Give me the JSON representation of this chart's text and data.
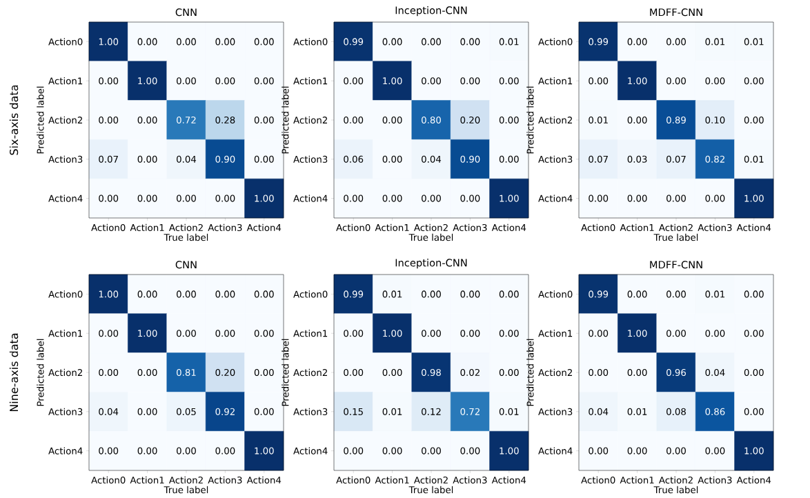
{
  "chart_data": [
    {
      "type": "heatmap",
      "title": "CNN",
      "xlabel": "True label",
      "ylabel": "Predicted label",
      "annotations": [
        "Six-axis data"
      ],
      "categories": [
        "Action0",
        "Action1",
        "Action2",
        "Action3",
        "Action4"
      ],
      "y_categories": [
        "Action0",
        "Action1",
        "Action2",
        "Action3",
        "Action4"
      ],
      "cells": [
        [
          1.0,
          0.0,
          0.0,
          0.0,
          0.0
        ],
        [
          0.0,
          1.0,
          0.0,
          0.0,
          0.0
        ],
        [
          0.0,
          0.0,
          0.72,
          0.28,
          0.0
        ],
        [
          0.07,
          0.0,
          0.04,
          0.9,
          0.0
        ],
        [
          0.0,
          0.0,
          0.0,
          0.0,
          1.0
        ]
      ],
      "cell_labels": [
        [
          "1.00",
          "0.00",
          "0.00",
          "0.00",
          "0.00"
        ],
        [
          "0.00",
          "1.00",
          "0.00",
          "0.00",
          "0.00"
        ],
        [
          "0.00",
          "0.00",
          "0.72",
          "0.28",
          "0.00"
        ],
        [
          "0.07",
          "0.00",
          "0.04",
          "0.90",
          "0.00"
        ],
        [
          "0.00",
          "0.00",
          "0.00",
          "0.00",
          "1.00"
        ]
      ]
    },
    {
      "type": "heatmap",
      "title": "Inception-CNN",
      "xlabel": "True label",
      "ylabel": "Predicted label",
      "categories": [
        "Action0",
        "Action1",
        "Action2",
        "Action3",
        "Action4"
      ],
      "y_categories": [
        "Action0",
        "Action1",
        "Action2",
        "Action3",
        "Action4"
      ],
      "cells": [
        [
          0.99,
          0.0,
          0.0,
          0.0,
          0.01
        ],
        [
          0.0,
          1.0,
          0.0,
          0.0,
          0.0
        ],
        [
          0.0,
          0.0,
          0.8,
          0.2,
          0.0
        ],
        [
          0.06,
          0.0,
          0.04,
          0.9,
          0.0
        ],
        [
          0.0,
          0.0,
          0.0,
          0.0,
          1.0
        ]
      ],
      "cell_labels": [
        [
          "0.99",
          "0.00",
          "0.00",
          "0.00",
          "0.01"
        ],
        [
          "0.00",
          "1.00",
          "0.00",
          "0.00",
          "0.00"
        ],
        [
          "0.00",
          "0.00",
          "0.80",
          "0.20",
          "0.00"
        ],
        [
          "0.06",
          "0.00",
          "0.04",
          "0.90",
          "0.00"
        ],
        [
          "0.00",
          "0.00",
          "0.00",
          "0.00",
          "1.00"
        ]
      ]
    },
    {
      "type": "heatmap",
      "title": "MDFF-CNN",
      "xlabel": "True label",
      "ylabel": "Predicted label",
      "categories": [
        "Action0",
        "Action1",
        "Action2",
        "Action3",
        "Action4"
      ],
      "y_categories": [
        "Action0",
        "Action1",
        "Action2",
        "Action3",
        "Action4"
      ],
      "cells": [
        [
          0.99,
          0.0,
          0.0,
          0.01,
          0.01
        ],
        [
          0.0,
          1.0,
          0.0,
          0.0,
          0.0
        ],
        [
          0.01,
          0.0,
          0.89,
          0.1,
          0.0
        ],
        [
          0.07,
          0.03,
          0.07,
          0.82,
          0.01
        ],
        [
          0.0,
          0.0,
          0.0,
          0.0,
          1.0
        ]
      ],
      "cell_labels": [
        [
          "0.99",
          "0.00",
          "0.00",
          "0.01",
          "0.01"
        ],
        [
          "0.00",
          "1.00",
          "0.00",
          "0.00",
          "0.00"
        ],
        [
          "0.01",
          "0.00",
          "0.89",
          "0.10",
          "0.00"
        ],
        [
          "0.07",
          "0.03",
          "0.07",
          "0.82",
          "0.01"
        ],
        [
          "0.00",
          "0.00",
          "0.00",
          "0.00",
          "1.00"
        ]
      ]
    },
    {
      "type": "heatmap",
      "title": "CNN",
      "xlabel": "True label",
      "ylabel": "Predicted label",
      "annotations": [
        "Nine-axis data"
      ],
      "categories": [
        "Action0",
        "Action1",
        "Action2",
        "Action3",
        "Action4"
      ],
      "y_categories": [
        "Action0",
        "Action1",
        "Action2",
        "Action3",
        "Action4"
      ],
      "cells": [
        [
          1.0,
          0.0,
          0.0,
          0.0,
          0.0
        ],
        [
          0.0,
          1.0,
          0.0,
          0.0,
          0.0
        ],
        [
          0.0,
          0.0,
          0.81,
          0.2,
          0.0
        ],
        [
          0.04,
          0.0,
          0.05,
          0.92,
          0.0
        ],
        [
          0.0,
          0.0,
          0.0,
          0.0,
          1.0
        ]
      ],
      "cell_labels": [
        [
          "1.00",
          "0.00",
          "0.00",
          "0.00",
          "0.00"
        ],
        [
          "0.00",
          "1.00",
          "0.00",
          "0.00",
          "0.00"
        ],
        [
          "0.00",
          "0.00",
          "0.81",
          "0.20",
          "0.00"
        ],
        [
          "0.04",
          "0.00",
          "0.05",
          "0.92",
          "0.00"
        ],
        [
          "0.00",
          "0.00",
          "0.00",
          "0.00",
          "1.00"
        ]
      ]
    },
    {
      "type": "heatmap",
      "title": "Inception-CNN",
      "xlabel": "True label",
      "ylabel": "Predicted label",
      "categories": [
        "Action0",
        "Action1",
        "Action2",
        "Action3",
        "Action4"
      ],
      "y_categories": [
        "Action0",
        "Action1",
        "Action2",
        "Action3",
        "Action4"
      ],
      "cells": [
        [
          0.99,
          0.01,
          0.0,
          0.0,
          0.0
        ],
        [
          0.0,
          1.0,
          0.0,
          0.0,
          0.0
        ],
        [
          0.0,
          0.0,
          0.98,
          0.02,
          0.0
        ],
        [
          0.15,
          0.01,
          0.12,
          0.72,
          0.01
        ],
        [
          0.0,
          0.0,
          0.0,
          0.0,
          1.0
        ]
      ],
      "cell_labels": [
        [
          "0.99",
          "0.01",
          "0.00",
          "0.00",
          "0.00"
        ],
        [
          "0.00",
          "1.00",
          "0.00",
          "0.00",
          "0.00"
        ],
        [
          "0.00",
          "0.00",
          "0.98",
          "0.02",
          "0.00"
        ],
        [
          "0.15",
          "0.01",
          "0.12",
          "0.72",
          "0.01"
        ],
        [
          "0.00",
          "0.00",
          "0.00",
          "0.00",
          "1.00"
        ]
      ]
    },
    {
      "type": "heatmap",
      "title": "MDFF-CNN",
      "xlabel": "True label",
      "ylabel": "Predicted label",
      "categories": [
        "Action0",
        "Action1",
        "Action2",
        "Action3",
        "Action4"
      ],
      "y_categories": [
        "Action0",
        "Action1",
        "Action2",
        "Action3",
        "Action4"
      ],
      "cells": [
        [
          0.99,
          0.0,
          0.0,
          0.01,
          0.0
        ],
        [
          0.0,
          1.0,
          0.0,
          0.0,
          0.0
        ],
        [
          0.0,
          0.0,
          0.96,
          0.04,
          0.0
        ],
        [
          0.04,
          0.01,
          0.08,
          0.86,
          0.0
        ],
        [
          0.0,
          0.0,
          0.0,
          0.0,
          1.0
        ]
      ],
      "cell_labels": [
        [
          "0.99",
          "0.00",
          "0.00",
          "0.01",
          "0.00"
        ],
        [
          "0.00",
          "1.00",
          "0.00",
          "0.00",
          "0.00"
        ],
        [
          "0.00",
          "0.00",
          "0.96",
          "0.04",
          "0.00"
        ],
        [
          "0.04",
          "0.01",
          "0.08",
          "0.86",
          "0.00"
        ],
        [
          "0.00",
          "0.00",
          "0.00",
          "0.00",
          "1.00"
        ]
      ]
    }
  ]
}
